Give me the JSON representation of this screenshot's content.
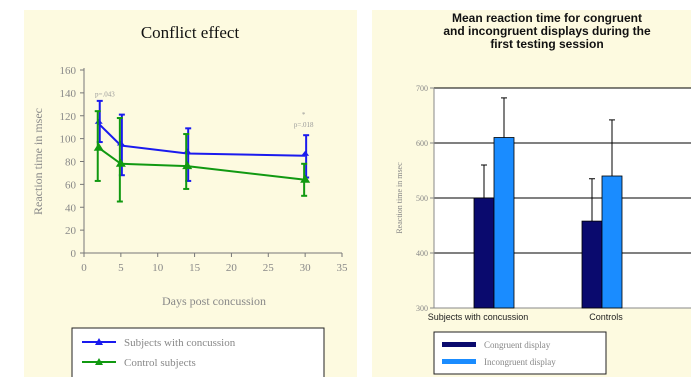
{
  "chart_data": [
    {
      "type": "line",
      "title": "Conflict effect",
      "xlabel": "Days post concussion",
      "ylabel": "Reaction time in msec",
      "xlim": [
        0,
        35
      ],
      "ylim": [
        0,
        160
      ],
      "xticks": [
        0,
        5,
        10,
        15,
        20,
        25,
        30,
        35
      ],
      "yticks": [
        0,
        20,
        40,
        60,
        80,
        100,
        120,
        140,
        160
      ],
      "x": [
        2,
        5,
        14,
        30
      ],
      "series": [
        {
          "name": "Subjects with concussion",
          "color": "#1a1aee",
          "values": [
            113,
            94,
            87,
            85
          ],
          "err_lo": [
            97,
            68,
            63,
            66
          ],
          "err_hi": [
            133,
            121,
            109,
            103
          ]
        },
        {
          "name": "Control subjects",
          "color": "#119911",
          "values": [
            92,
            78,
            76,
            64
          ],
          "err_lo": [
            63,
            45,
            56,
            50
          ],
          "err_hi": [
            124,
            118,
            104,
            78
          ]
        }
      ],
      "annotations": [
        {
          "text": "p=.043",
          "x": 1.5,
          "y": 137
        },
        {
          "text": "*",
          "x": 29.8,
          "y": 119
        },
        {
          "text": "p=.018",
          "x": 29.8,
          "y": 110
        }
      ],
      "legend": "bottom",
      "grid": false
    },
    {
      "type": "bar",
      "title": [
        "Mean reaction time for congruent",
        "and incongruent displays during the",
        "first testing session"
      ],
      "ylabel": "Reaction time in msec",
      "ylim": [
        300,
        700
      ],
      "yticks": [
        300,
        400,
        500,
        600,
        700
      ],
      "categories": [
        "Subjects with concussion",
        "Controls"
      ],
      "series": [
        {
          "name": "Congruent display",
          "color": "#0a0a6e",
          "values": [
            500,
            458
          ],
          "err_hi": [
            560,
            535
          ]
        },
        {
          "name": "Incongruent display",
          "color": "#1a8cff",
          "values": [
            610,
            540
          ],
          "err_hi": [
            682,
            642
          ]
        }
      ],
      "legend": "bottom",
      "grid": true
    }
  ]
}
